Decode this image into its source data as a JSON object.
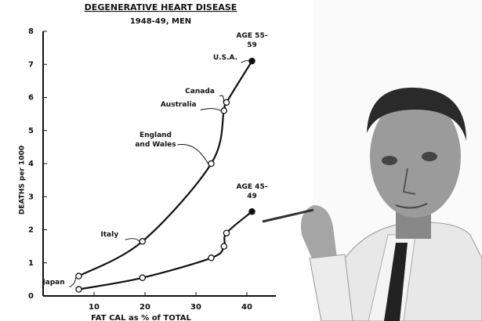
{
  "chart_data": {
    "type": "line",
    "title": "DEGENERATIVE HEART DISEASE",
    "subtitle": "1948-49, MEN",
    "y_label": "DEATHS per 1000",
    "x_label": "FAT CAL as % of TOTAL",
    "point_labels": [
      "Japan",
      "Italy",
      "England and Wales",
      "Australia",
      "Canada",
      "U.S.A."
    ],
    "x": [
      7,
      19.5,
      33,
      35.5,
      36,
      41
    ],
    "series": [
      {
        "name": "AGE 55-59",
        "color": "#111111",
        "values": [
          0.6,
          1.65,
          4.0,
          5.6,
          5.85,
          7.1
        ]
      },
      {
        "name": "AGE 45-49",
        "color": "#111111",
        "values": [
          0.2,
          0.55,
          1.15,
          1.5,
          1.9,
          2.55
        ]
      }
    ],
    "xlim": [
      0,
      46
    ],
    "ylim": [
      0,
      8
    ],
    "xticks": [
      10,
      20,
      30,
      40
    ],
    "yticks": [
      0,
      1,
      2,
      3,
      4,
      5,
      6,
      7,
      8
    ]
  }
}
